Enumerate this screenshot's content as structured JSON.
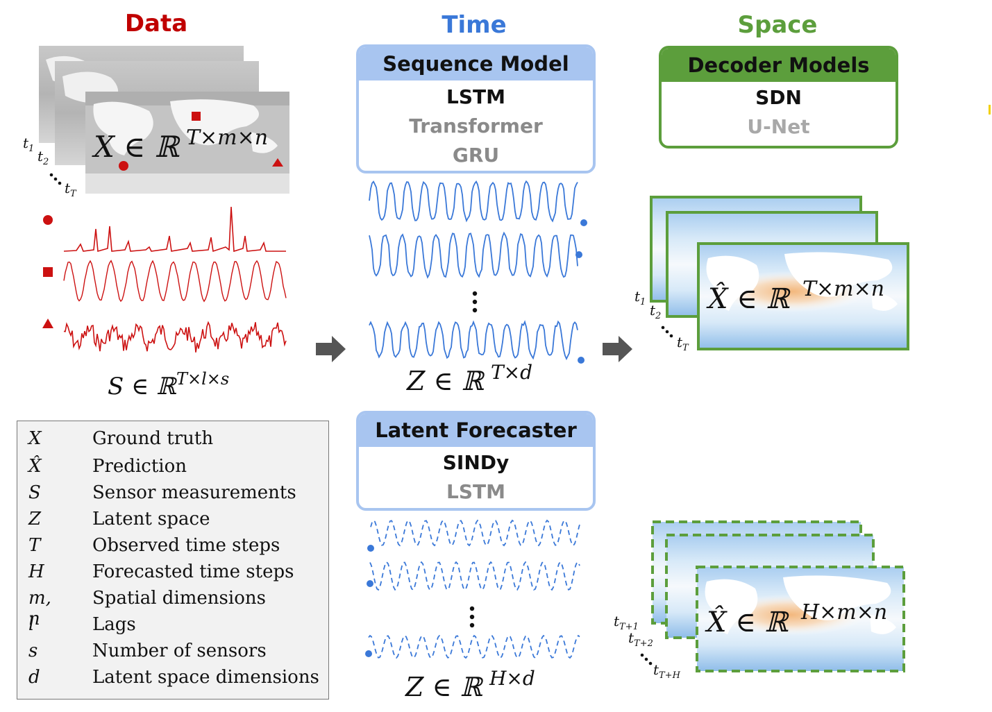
{
  "columns": {
    "data": {
      "title": "Data",
      "color": "#c00000"
    },
    "time": {
      "title": "Time",
      "color": "#3a78d8"
    },
    "space": {
      "title": "Space",
      "color": "#5c9e3c"
    }
  },
  "sequence_model": {
    "header": "Sequence Model",
    "items": [
      "LSTM",
      "Transformer",
      "GRU"
    ]
  },
  "decoder_models": {
    "header": "Decoder Models",
    "items": [
      "SDN",
      "U-Net"
    ]
  },
  "latent_forecaster": {
    "header": "Latent Forecaster",
    "items": [
      "SINDy",
      "LSTM"
    ]
  },
  "math": {
    "x_space": "X ∈ ℝ",
    "x_space_sup": "T×m×n",
    "s_space": "S ∈ ℝ",
    "s_space_sup": "T×l×s",
    "z_obs": "Z ∈ ℝ",
    "z_obs_sup": "T×d",
    "z_fore": "Z ∈ ℝ",
    "z_fore_sup": "H×d",
    "xhat_obs": "X̂ ∈ ℝ",
    "xhat_obs_sup": "T×m×n",
    "xhat_fore": "X̂ ∈ ℝ",
    "xhat_fore_sup": "H×m×n",
    "t1": "t",
    "t1_sub": "1",
    "t2": "t",
    "t2_sub": "2",
    "tT": "t",
    "tT_sub": "T",
    "tT1": "t",
    "tT1_sub": "T+1",
    "tT2": "t",
    "tT2_sub": "T+2",
    "tTH": "t",
    "tTH_sub": "T+H"
  },
  "legend": [
    {
      "symbol": "X",
      "desc": "Ground truth"
    },
    {
      "symbol": "X̂",
      "desc": "Prediction"
    },
    {
      "symbol": "S",
      "desc": "Sensor measurements"
    },
    {
      "symbol": "Z",
      "desc": "Latent space"
    },
    {
      "symbol": "T",
      "desc": "Observed time steps"
    },
    {
      "symbol": "H",
      "desc": "Forecasted time steps"
    },
    {
      "symbol": "m, n",
      "desc": "Spatial dimensions"
    },
    {
      "symbol": "l",
      "desc": "Lags"
    },
    {
      "symbol": "s",
      "desc": "Number of sensors"
    },
    {
      "symbol": "d",
      "desc": "Latent space dimensions"
    }
  ],
  "ellipsis": "⋮",
  "colors": {
    "sensor": "#cc1111",
    "latent": "#3a78d8",
    "seq_header": "#a8c5f0",
    "seq_border": "#a8c5f0",
    "decoder": "#5c9e3c",
    "arrow": "#555555",
    "muted_text": "#8a8a8a"
  }
}
